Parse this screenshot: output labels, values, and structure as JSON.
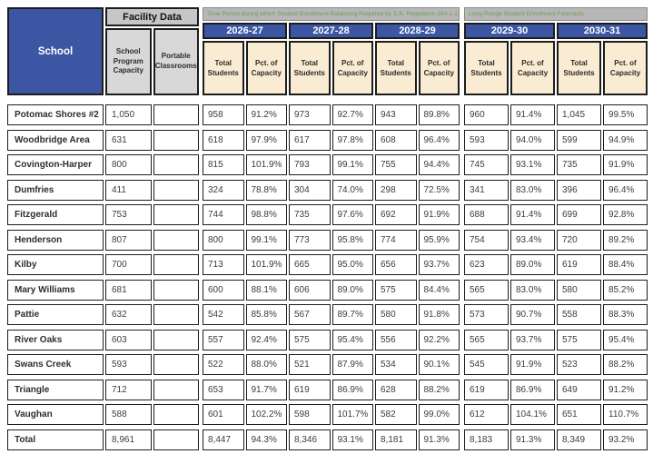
{
  "header": {
    "school_label": "School",
    "facility": {
      "title": "Facility Data",
      "col_capacity": "School\nProgram\nCapacity",
      "col_portable": "Portable\nClassrooms"
    },
    "balancing": {
      "title": "Time Period during which Student Enrollment Balancing Required by S.B. Regulation 264-1.2",
      "years": [
        "2026-27",
        "2027-28",
        "2028-29"
      ]
    },
    "forecast": {
      "title": "Long-Range Student Enrollment Forecasts",
      "years": [
        "2029-30",
        "2030-31"
      ]
    },
    "labels": {
      "total_students": "Total\nStudents",
      "pct_capacity": "Pct. of\nCapacity"
    }
  },
  "colors": {
    "header_blue": "#3c56a4",
    "cream": "#faecd2",
    "band_gray": "#b7b7b7",
    "facility_gray": "#c6c6c6",
    "subcell_gray": "#d8d8d8",
    "band_text_green": "#6f9e56",
    "border": "#1d1d1d"
  },
  "rows": [
    {
      "school": "Potomac Shores #2",
      "capacity": "1,050",
      "portable": "",
      "values": [
        "958",
        "91.2%",
        "973",
        "92.7%",
        "943",
        "89.8%",
        "960",
        "91.4%",
        "1,045",
        "99.5%"
      ]
    },
    {
      "school": "Woodbridge Area",
      "capacity": "631",
      "portable": "",
      "values": [
        "618",
        "97.9%",
        "617",
        "97.8%",
        "608",
        "96.4%",
        "593",
        "94.0%",
        "599",
        "94.9%"
      ]
    },
    {
      "school": "Covington-Harper",
      "capacity": "800",
      "portable": "",
      "values": [
        "815",
        "101.9%",
        "793",
        "99.1%",
        "755",
        "94.4%",
        "745",
        "93.1%",
        "735",
        "91.9%"
      ]
    },
    {
      "school": "Dumfries",
      "capacity": "411",
      "portable": "",
      "values": [
        "324",
        "78.8%",
        "304",
        "74.0%",
        "298",
        "72.5%",
        "341",
        "83.0%",
        "396",
        "96.4%"
      ]
    },
    {
      "school": "Fitzgerald",
      "capacity": "753",
      "portable": "",
      "values": [
        "744",
        "98.8%",
        "735",
        "97.6%",
        "692",
        "91.9%",
        "688",
        "91.4%",
        "699",
        "92.8%"
      ]
    },
    {
      "school": "Henderson",
      "capacity": "807",
      "portable": "",
      "values": [
        "800",
        "99.1%",
        "773",
        "95.8%",
        "774",
        "95.9%",
        "754",
        "93.4%",
        "720",
        "89.2%"
      ]
    },
    {
      "school": "Kilby",
      "capacity": "700",
      "portable": "",
      "values": [
        "713",
        "101.9%",
        "665",
        "95.0%",
        "656",
        "93.7%",
        "623",
        "89.0%",
        "619",
        "88.4%"
      ]
    },
    {
      "school": "Mary Williams",
      "capacity": "681",
      "portable": "",
      "values": [
        "600",
        "88.1%",
        "606",
        "89.0%",
        "575",
        "84.4%",
        "565",
        "83.0%",
        "580",
        "85.2%"
      ]
    },
    {
      "school": "Pattie",
      "capacity": "632",
      "portable": "",
      "values": [
        "542",
        "85.8%",
        "567",
        "89.7%",
        "580",
        "91.8%",
        "573",
        "90.7%",
        "558",
        "88.3%"
      ]
    },
    {
      "school": "River Oaks",
      "capacity": "603",
      "portable": "",
      "values": [
        "557",
        "92.4%",
        "575",
        "95.4%",
        "556",
        "92.2%",
        "565",
        "93.7%",
        "575",
        "95.4%"
      ]
    },
    {
      "school": "Swans Creek",
      "capacity": "593",
      "portable": "",
      "values": [
        "522",
        "88.0%",
        "521",
        "87.9%",
        "534",
        "90.1%",
        "545",
        "91.9%",
        "523",
        "88.2%"
      ]
    },
    {
      "school": "Triangle",
      "capacity": "712",
      "portable": "",
      "values": [
        "653",
        "91.7%",
        "619",
        "86.9%",
        "628",
        "88.2%",
        "619",
        "86.9%",
        "649",
        "91.2%"
      ]
    },
    {
      "school": "Vaughan",
      "capacity": "588",
      "portable": "",
      "values": [
        "601",
        "102.2%",
        "598",
        "101.7%",
        "582",
        "99.0%",
        "612",
        "104.1%",
        "651",
        "110.7%"
      ]
    },
    {
      "school": "Total",
      "capacity": "8,961",
      "portable": "",
      "values": [
        "8,447",
        "94.3%",
        "8,346",
        "93.1%",
        "8,181",
        "91.3%",
        "8,183",
        "91.3%",
        "8,349",
        "93.2%"
      ]
    }
  ]
}
